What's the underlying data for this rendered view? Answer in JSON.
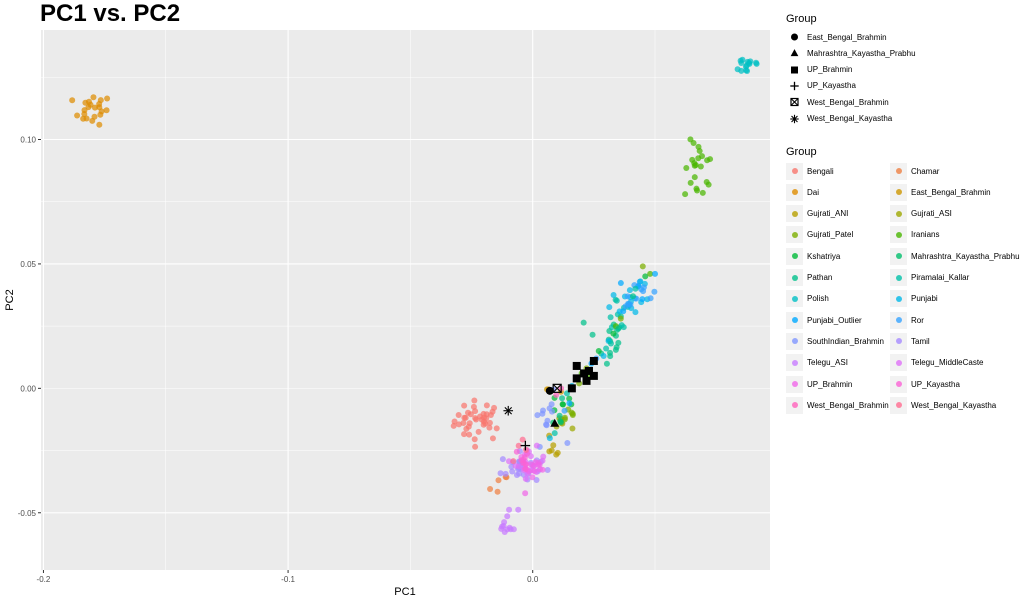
{
  "chart_data": {
    "type": "scatter",
    "title": "PC1 vs. PC2",
    "xlabel": "PC1",
    "ylabel": "PC2",
    "xlim": [
      -0.201,
      0.097
    ],
    "ylim": [
      -0.073,
      0.144
    ],
    "x_ticks": [
      -0.2,
      -0.1,
      0.0
    ],
    "x_tick_labels": [
      "-0.2",
      "-0.1",
      "0.0"
    ],
    "y_ticks": [
      -0.05,
      0.0,
      0.05,
      0.1
    ],
    "y_tick_labels": [
      "-0.05",
      "0.00",
      "0.05",
      "0.10"
    ],
    "grid": true,
    "background": "#ebebeb",
    "legend_position": "right",
    "legend_shape_title": "Group",
    "legend_color_title": "Group",
    "shape_groups": [
      {
        "name": "East_Bengal_Brahmin",
        "shape": "circle",
        "points": [
          [
            0.007,
            -0.001
          ]
        ]
      },
      {
        "name": "Mahrashtra_Kayastha_Prabhu",
        "shape": "triangle",
        "points": [
          [
            0.009,
            -0.014
          ]
        ]
      },
      {
        "name": "UP_Brahmin",
        "shape": "square",
        "points": [
          [
            0.016,
            0.0
          ],
          [
            0.018,
            0.004
          ],
          [
            0.018,
            0.009
          ],
          [
            0.021,
            0.006
          ],
          [
            0.022,
            0.003
          ],
          [
            0.023,
            0.007
          ],
          [
            0.025,
            0.005
          ],
          [
            0.025,
            0.011
          ]
        ]
      },
      {
        "name": "UP_Kayastha",
        "shape": "plus",
        "points": [
          [
            -0.003,
            -0.023
          ]
        ]
      },
      {
        "name": "West_Bengal_Brahmin",
        "shape": "square-x",
        "points": [
          [
            0.01,
            0.0
          ]
        ]
      },
      {
        "name": "West_Bengal_Kayastha",
        "shape": "asterisk",
        "points": [
          [
            -0.01,
            -0.009
          ]
        ]
      }
    ],
    "color_groups": [
      {
        "name": "Bengali",
        "color": "#F8766D",
        "cx": -0.022,
        "cy": -0.013,
        "sx": 0.005,
        "sy": 0.004,
        "n": 40
      },
      {
        "name": "Chamar",
        "color": "#EE8042",
        "cx": -0.014,
        "cy": -0.04,
        "sx": 0.002,
        "sy": 0.003,
        "n": 5
      },
      {
        "name": "Dai",
        "color": "#DE8C00",
        "cx": -0.18,
        "cy": 0.112,
        "sx": 0.004,
        "sy": 0.003,
        "n": 22
      },
      {
        "name": "East_Bengal_Brahmin",
        "color": "#CD9600",
        "cx": 0.008,
        "cy": -0.002,
        "sx": 0.002,
        "sy": 0.002,
        "n": 3
      },
      {
        "name": "Gujrati_ANI",
        "color": "#B79F00",
        "cx": 0.008,
        "cy": -0.024,
        "sx": 0.002,
        "sy": 0.002,
        "n": 6
      },
      {
        "name": "Gujrati_ASI",
        "color": "#9DA700",
        "cx": 0.012,
        "cy": -0.015,
        "sx": 0.002,
        "sy": 0.002,
        "n": 6
      },
      {
        "name": "Gujrati_Patel",
        "color": "#7CAE00",
        "cx": 0.014,
        "cy": -0.01,
        "sx": 0.002,
        "sy": 0.002,
        "n": 6
      },
      {
        "name": "Iranians",
        "color": "#49B500",
        "cx": 0.068,
        "cy": 0.087,
        "sx": 0.003,
        "sy": 0.006,
        "n": 22
      },
      {
        "name": "Kshatriya",
        "color": "#00BA38",
        "cx": 0.012,
        "cy": -0.006,
        "sx": 0.002,
        "sy": 0.002,
        "n": 6
      },
      {
        "name": "Mahrashtra_Kayastha_Prabhu",
        "color": "#00BE6C",
        "cx": 0.01,
        "cy": -0.013,
        "sx": 0.002,
        "sy": 0.002,
        "n": 3
      },
      {
        "name": "Pathan",
        "color": "#00C08B",
        "cx": 0.03,
        "cy": 0.02,
        "sx": 0.004,
        "sy": 0.006,
        "n": 15
      },
      {
        "name": "Piramalai_Kallar",
        "color": "#00C1A7",
        "cx": 0.035,
        "cy": 0.03,
        "sx": 0.003,
        "sy": 0.005,
        "n": 10
      },
      {
        "name": "Polish",
        "color": "#00BFC4",
        "cx": 0.088,
        "cy": 0.13,
        "sx": 0.003,
        "sy": 0.002,
        "n": 15
      },
      {
        "name": "Punjabi",
        "color": "#00B8E7",
        "cx": 0.04,
        "cy": 0.036,
        "sx": 0.004,
        "sy": 0.004,
        "n": 15
      },
      {
        "name": "Punjabi_Outlier",
        "color": "#00A9FF",
        "cx": 0.043,
        "cy": 0.04,
        "sx": 0.002,
        "sy": 0.002,
        "n": 4
      },
      {
        "name": "Ror",
        "color": "#35A2FF",
        "cx": 0.043,
        "cy": 0.04,
        "sx": 0.003,
        "sy": 0.003,
        "n": 10
      },
      {
        "name": "SouthIndian_Brahmin",
        "color": "#7F96FF",
        "cx": 0.006,
        "cy": -0.012,
        "sx": 0.003,
        "sy": 0.005,
        "n": 12
      },
      {
        "name": "Tamil",
        "color": "#A58AFF",
        "cx": -0.005,
        "cy": -0.032,
        "sx": 0.004,
        "sy": 0.003,
        "n": 30
      },
      {
        "name": "Telegu_ASI",
        "color": "#C77CFF",
        "cx": -0.01,
        "cy": -0.054,
        "sx": 0.002,
        "sy": 0.003,
        "n": 12
      },
      {
        "name": "Telegu_MiddleCaste",
        "color": "#DF70F8",
        "cx": -0.001,
        "cy": -0.03,
        "sx": 0.003,
        "sy": 0.003,
        "n": 20
      },
      {
        "name": "UP_Brahmin",
        "color": "#F066E8",
        "cx": 0.0,
        "cy": -0.032,
        "sx": 0.003,
        "sy": 0.003,
        "n": 15
      },
      {
        "name": "UP_Kayastha",
        "color": "#FA62D4",
        "cx": -0.003,
        "cy": -0.028,
        "sx": 0.002,
        "sy": 0.002,
        "n": 8
      },
      {
        "name": "West_Bengal_Brahmin",
        "color": "#FF62BC",
        "cx": 0.01,
        "cy": 0.0,
        "sx": 0.001,
        "sy": 0.001,
        "n": 2
      },
      {
        "name": "West_Bengal_Kayastha",
        "color": "#FF6C90",
        "cx": -0.006,
        "cy": -0.025,
        "sx": 0.002,
        "sy": 0.002,
        "n": 4
      }
    ],
    "streak_points": [
      [
        0.012,
        -0.004
      ],
      [
        0.014,
        -0.002
      ],
      [
        0.016,
        0.001
      ],
      [
        0.018,
        0.004
      ],
      [
        0.02,
        0.006
      ],
      [
        0.022,
        0.008
      ],
      [
        0.024,
        0.01
      ],
      [
        0.026,
        0.012
      ],
      [
        0.028,
        0.014
      ],
      [
        0.03,
        0.016
      ],
      [
        0.031,
        0.019
      ],
      [
        0.033,
        0.022
      ],
      [
        0.034,
        0.025
      ],
      [
        0.036,
        0.028
      ],
      [
        0.037,
        0.031
      ],
      [
        0.039,
        0.034
      ],
      [
        0.041,
        0.037
      ],
      [
        0.042,
        0.04
      ],
      [
        0.044,
        0.043
      ],
      [
        0.046,
        0.045
      ],
      [
        0.048,
        0.046
      ],
      [
        0.045,
        0.049
      ],
      [
        0.05,
        0.046
      ],
      [
        0.038,
        0.033
      ],
      [
        0.035,
        0.024
      ],
      [
        0.032,
        0.018
      ],
      [
        0.029,
        0.013
      ],
      [
        0.027,
        0.015
      ],
      [
        0.023,
        0.005
      ],
      [
        0.019,
        0.002
      ],
      [
        0.015,
        -0.006
      ],
      [
        0.013,
        -0.009
      ],
      [
        0.011,
        -0.011
      ],
      [
        0.009,
        -0.018
      ],
      [
        0.007,
        -0.02
      ]
    ],
    "streak_colors": [
      "#00C08B",
      "#00C1A7",
      "#00B8E7",
      "#00BA38",
      "#49B500",
      "#7CAE00",
      "#00A9FF",
      "#35A2FF"
    ]
  }
}
